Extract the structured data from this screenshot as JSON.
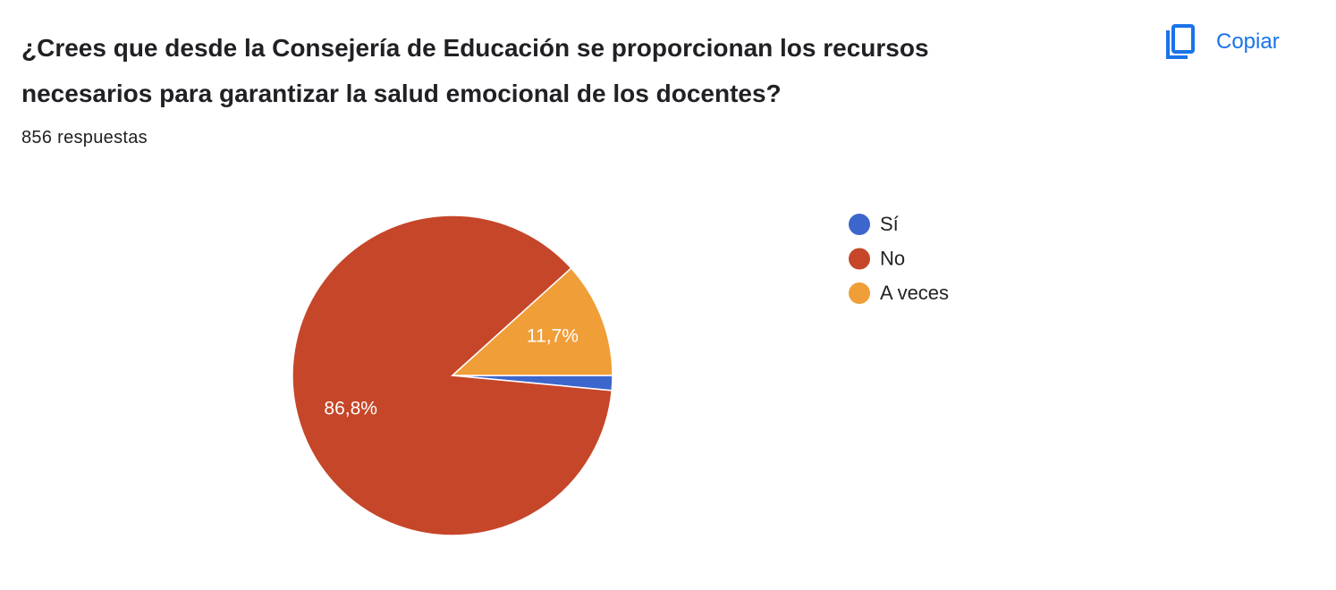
{
  "chart_data": {
    "type": "pie",
    "title": "¿Crees que desde la Consejería de Educación se proporcionan los recursos necesarios para garantizar la salud emocional de los docentes?",
    "subtitle": "856 respuestas",
    "categories": [
      "Sí",
      "No",
      "A veces"
    ],
    "values": [
      1.5,
      86.8,
      11.7
    ],
    "value_labels": [
      null,
      "86,8%",
      "11,7%"
    ],
    "colors": [
      "#3d66cc",
      "#c64629",
      "#f09e38"
    ],
    "legend": "right"
  },
  "copy_button": "Copiar"
}
